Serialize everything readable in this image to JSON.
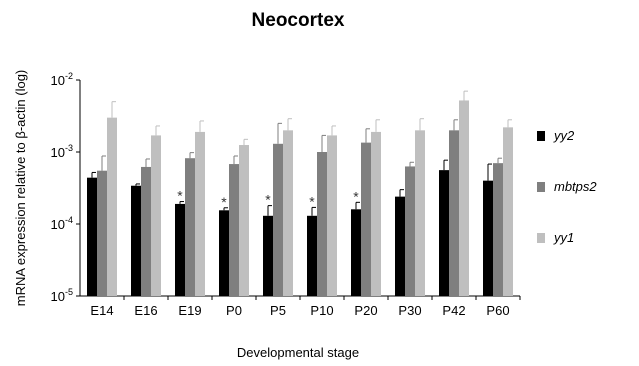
{
  "chart_data": {
    "type": "bar",
    "title": "Neocortex",
    "xlabel": "Developmental stage",
    "ylabel": "mRNA expression relative to β-actin (log)",
    "yscale": "log",
    "ylim": [
      1e-05,
      0.01
    ],
    "y_ticks": [
      {
        "value": 1e-05,
        "base": "10",
        "exp": "-5"
      },
      {
        "value": 0.0001,
        "base": "10",
        "exp": "-4"
      },
      {
        "value": 0.001,
        "base": "10",
        "exp": "-3"
      },
      {
        "value": 0.01,
        "base": "10",
        "exp": "-2"
      }
    ],
    "grid": false,
    "legend_position": "right",
    "categories": [
      "E14",
      "E16",
      "E19",
      "P0",
      "P5",
      "P10",
      "P20",
      "P30",
      "P42",
      "P60"
    ],
    "series": [
      {
        "name": "yy2",
        "color": "#000000",
        "values": [
          0.00044,
          0.00034,
          0.00019,
          0.000155,
          0.00013,
          0.00013,
          0.00016,
          0.00024,
          0.00056,
          0.0004
        ],
        "errors": [
          0.00052,
          0.00036,
          0.000205,
          0.000168,
          0.00018,
          0.00017,
          0.0002,
          0.0003,
          0.00077,
          0.00068
        ],
        "significant": [
          false,
          false,
          true,
          true,
          true,
          true,
          true,
          false,
          false,
          false
        ]
      },
      {
        "name": "mbtps2",
        "color": "#7f7f7f",
        "values": [
          0.00055,
          0.00062,
          0.00082,
          0.00068,
          0.0013,
          0.001,
          0.00135,
          0.00063,
          0.002,
          0.0007
        ],
        "errors": [
          0.00088,
          0.0008,
          0.00098,
          0.00088,
          0.0025,
          0.0017,
          0.0021,
          0.00072,
          0.0028,
          0.00082
        ],
        "significant": [
          false,
          false,
          false,
          false,
          false,
          false,
          false,
          false,
          false,
          false
        ]
      },
      {
        "name": "yy1",
        "color": "#bfbfbf",
        "values": [
          0.003,
          0.0017,
          0.0019,
          0.00125,
          0.002,
          0.0017,
          0.0019,
          0.002,
          0.0052,
          0.0022
        ],
        "errors": [
          0.005,
          0.0023,
          0.0027,
          0.0015,
          0.0029,
          0.0023,
          0.0028,
          0.0029,
          0.007,
          0.0028
        ],
        "significant": [
          false,
          false,
          false,
          false,
          false,
          false,
          false,
          false,
          false,
          false
        ]
      }
    ],
    "annotation_symbol": "*"
  }
}
